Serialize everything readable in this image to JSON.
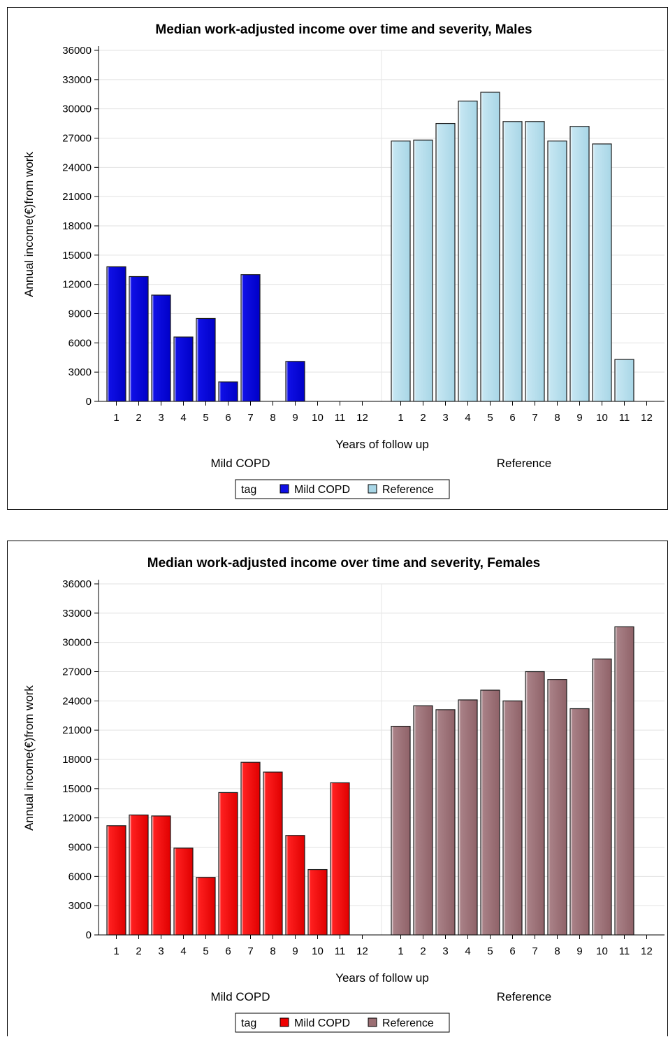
{
  "chart_data": [
    {
      "type": "bar",
      "title": "Median work-adjusted income over time and severity, Males",
      "ylabel": "Annual income(€)from work",
      "xlabel": "Years of follow up",
      "ylim": [
        0,
        36000
      ],
      "yticks": [
        0,
        3000,
        6000,
        9000,
        12000,
        15000,
        18000,
        21000,
        24000,
        27000,
        30000,
        33000,
        36000
      ],
      "categories": [
        "1",
        "2",
        "3",
        "4",
        "5",
        "6",
        "7",
        "8",
        "9",
        "10",
        "11",
        "12"
      ],
      "grid": true,
      "legend": {
        "title": "tag",
        "placement": "bottom-center"
      },
      "series": [
        {
          "name": "Mild COPD",
          "group_label": "Mild COPD",
          "color": "#1010e6",
          "values": [
            13800,
            12800,
            10900,
            6600,
            8500,
            2000,
            13000,
            0,
            4100,
            0,
            0,
            0
          ]
        },
        {
          "name": "Reference",
          "group_label": "Reference",
          "color": "#a8d6e6",
          "values": [
            26700,
            26800,
            28500,
            30800,
            31700,
            28700,
            28700,
            26700,
            28200,
            26400,
            4300,
            0
          ]
        }
      ]
    },
    {
      "type": "bar",
      "title": "Median work-adjusted income over time and severity, Females",
      "ylabel": "Annual income(€)from work",
      "xlabel": "Years of follow up",
      "ylim": [
        0,
        36000
      ],
      "yticks": [
        0,
        3000,
        6000,
        9000,
        12000,
        15000,
        18000,
        21000,
        24000,
        27000,
        30000,
        33000,
        36000
      ],
      "categories": [
        "1",
        "2",
        "3",
        "4",
        "5",
        "6",
        "7",
        "8",
        "9",
        "10",
        "11",
        "12"
      ],
      "grid": true,
      "legend": {
        "title": "tag",
        "placement": "bottom-center"
      },
      "series": [
        {
          "name": "Mild COPD",
          "group_label": "Mild COPD",
          "color": "#f00000",
          "values": [
            11200,
            12300,
            12200,
            8900,
            5900,
            14600,
            17700,
            16700,
            10200,
            6700,
            15600,
            0
          ]
        },
        {
          "name": "Reference",
          "group_label": "Reference",
          "color": "#9c6f74",
          "values": [
            21400,
            23500,
            23100,
            24100,
            25100,
            24000,
            27000,
            26200,
            23200,
            28300,
            31600,
            0
          ]
        }
      ]
    }
  ]
}
